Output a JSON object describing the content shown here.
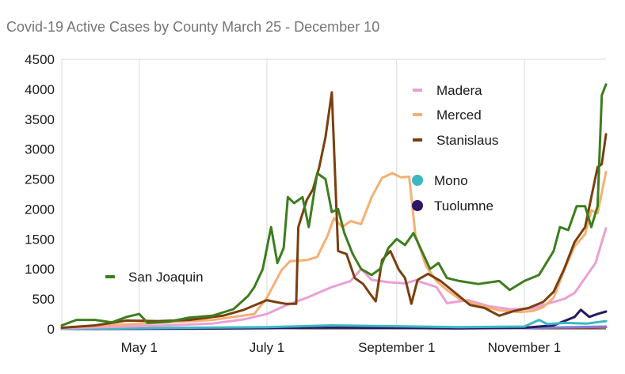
{
  "chart_data": {
    "type": "line",
    "title": "Covid-19 Active Cases by County March 25 - December 10",
    "xlabel": "",
    "ylabel": "",
    "ylim": [
      0,
      4500
    ],
    "yticks": [
      0,
      500,
      1000,
      1500,
      2000,
      2500,
      3000,
      3500,
      4000,
      4500
    ],
    "xlim": [
      "2020-03-25",
      "2020-12-10"
    ],
    "xticks": [
      {
        "date": "2020-05-01",
        "label": "May 1"
      },
      {
        "date": "2020-07-01",
        "label": "July 1"
      },
      {
        "date": "2020-09-01",
        "label": "September 1"
      },
      {
        "date": "2020-11-01",
        "label": "November 1"
      }
    ],
    "grid": "vertical",
    "legend_placement": "inside",
    "series": [
      {
        "name": "Madera",
        "color": "#e9a0d6",
        "legend_group": "top",
        "points": [
          [
            "2020-03-25",
            10
          ],
          [
            "2020-04-15",
            30
          ],
          [
            "2020-05-15",
            60
          ],
          [
            "2020-06-05",
            90
          ],
          [
            "2020-06-20",
            160
          ],
          [
            "2020-07-01",
            250
          ],
          [
            "2020-07-10",
            390
          ],
          [
            "2020-07-20",
            520
          ],
          [
            "2020-08-01",
            700
          ],
          [
            "2020-08-10",
            800
          ],
          [
            "2020-08-15",
            1000
          ],
          [
            "2020-08-20",
            820
          ],
          [
            "2020-08-28",
            780
          ],
          [
            "2020-09-05",
            760
          ],
          [
            "2020-09-10",
            810
          ],
          [
            "2020-09-20",
            700
          ],
          [
            "2020-09-25",
            430
          ],
          [
            "2020-10-05",
            480
          ],
          [
            "2020-10-15",
            380
          ],
          [
            "2020-10-25",
            330
          ],
          [
            "2020-11-05",
            340
          ],
          [
            "2020-11-10",
            400
          ],
          [
            "2020-11-20",
            500
          ],
          [
            "2020-11-25",
            600
          ],
          [
            "2020-12-01",
            900
          ],
          [
            "2020-12-05",
            1100
          ],
          [
            "2020-12-08",
            1450
          ],
          [
            "2020-12-10",
            1680
          ]
        ]
      },
      {
        "name": "Merced",
        "color": "#f5b073",
        "legend_group": "top",
        "points": [
          [
            "2020-03-25",
            20
          ],
          [
            "2020-04-15",
            60
          ],
          [
            "2020-05-10",
            100
          ],
          [
            "2020-06-05",
            150
          ],
          [
            "2020-06-25",
            250
          ],
          [
            "2020-07-01",
            520
          ],
          [
            "2020-07-08",
            980
          ],
          [
            "2020-07-12",
            1130
          ],
          [
            "2020-07-20",
            1150
          ],
          [
            "2020-07-25",
            1200
          ],
          [
            "2020-07-30",
            1560
          ],
          [
            "2020-08-02",
            1850
          ],
          [
            "2020-08-06",
            1700
          ],
          [
            "2020-08-10",
            1800
          ],
          [
            "2020-08-15",
            1750
          ],
          [
            "2020-08-20",
            2200
          ],
          [
            "2020-08-25",
            2520
          ],
          [
            "2020-08-30",
            2600
          ],
          [
            "2020-09-03",
            2530
          ],
          [
            "2020-09-07",
            2540
          ],
          [
            "2020-09-10",
            1560
          ],
          [
            "2020-09-15",
            1050
          ],
          [
            "2020-09-20",
            800
          ],
          [
            "2020-09-25",
            650
          ],
          [
            "2020-10-01",
            500
          ],
          [
            "2020-10-10",
            400
          ],
          [
            "2020-10-20",
            310
          ],
          [
            "2020-10-30",
            280
          ],
          [
            "2020-11-05",
            300
          ],
          [
            "2020-11-10",
            360
          ],
          [
            "2020-11-15",
            520
          ],
          [
            "2020-11-20",
            980
          ],
          [
            "2020-11-25",
            1380
          ],
          [
            "2020-11-30",
            1580
          ],
          [
            "2020-12-03",
            1980
          ],
          [
            "2020-12-06",
            1930
          ],
          [
            "2020-12-10",
            2620
          ]
        ]
      },
      {
        "name": "Stanislaus",
        "color": "#7a3f0f",
        "legend_group": "top",
        "points": [
          [
            "2020-03-25",
            20
          ],
          [
            "2020-04-10",
            60
          ],
          [
            "2020-04-25",
            140
          ],
          [
            "2020-05-10",
            130
          ],
          [
            "2020-05-25",
            150
          ],
          [
            "2020-06-10",
            220
          ],
          [
            "2020-06-20",
            320
          ],
          [
            "2020-07-01",
            480
          ],
          [
            "2020-07-05",
            450
          ],
          [
            "2020-07-10",
            420
          ],
          [
            "2020-07-15",
            420
          ],
          [
            "2020-07-16",
            1700
          ],
          [
            "2020-07-20",
            2150
          ],
          [
            "2020-07-23",
            2330
          ],
          [
            "2020-07-26",
            2700
          ],
          [
            "2020-07-29",
            3200
          ],
          [
            "2020-08-01",
            3950
          ],
          [
            "2020-08-04",
            1300
          ],
          [
            "2020-08-08",
            1250
          ],
          [
            "2020-08-12",
            850
          ],
          [
            "2020-08-16",
            750
          ],
          [
            "2020-08-19",
            600
          ],
          [
            "2020-08-22",
            460
          ],
          [
            "2020-08-25",
            1150
          ],
          [
            "2020-08-29",
            1300
          ],
          [
            "2020-09-02",
            990
          ],
          [
            "2020-09-05",
            850
          ],
          [
            "2020-09-08",
            420
          ],
          [
            "2020-09-11",
            820
          ],
          [
            "2020-09-16",
            920
          ],
          [
            "2020-09-22",
            800
          ],
          [
            "2020-09-29",
            600
          ],
          [
            "2020-10-06",
            400
          ],
          [
            "2020-10-13",
            350
          ],
          [
            "2020-10-20",
            220
          ],
          [
            "2020-10-27",
            300
          ],
          [
            "2020-11-03",
            350
          ],
          [
            "2020-11-10",
            450
          ],
          [
            "2020-11-15",
            620
          ],
          [
            "2020-11-20",
            1000
          ],
          [
            "2020-11-25",
            1450
          ],
          [
            "2020-11-30",
            1700
          ],
          [
            "2020-12-03",
            2200
          ],
          [
            "2020-12-06",
            2700
          ],
          [
            "2020-12-08",
            2750
          ],
          [
            "2020-12-10",
            3250
          ]
        ]
      },
      {
        "name": "Mono",
        "color": "#3cb7c3",
        "legend_group": "middle",
        "points": [
          [
            "2020-03-25",
            0
          ],
          [
            "2020-07-01",
            30
          ],
          [
            "2020-08-01",
            60
          ],
          [
            "2020-09-01",
            45
          ],
          [
            "2020-10-01",
            30
          ],
          [
            "2020-11-01",
            40
          ],
          [
            "2020-11-08",
            150
          ],
          [
            "2020-11-12",
            80
          ],
          [
            "2020-11-20",
            100
          ],
          [
            "2020-12-01",
            90
          ],
          [
            "2020-12-10",
            130
          ]
        ]
      },
      {
        "name": "Tuolumne",
        "color": "#2b1763",
        "legend_group": "middle",
        "points": [
          [
            "2020-03-25",
            0
          ],
          [
            "2020-06-01",
            5
          ],
          [
            "2020-07-01",
            15
          ],
          [
            "2020-08-01",
            25
          ],
          [
            "2020-09-01",
            15
          ],
          [
            "2020-10-01",
            10
          ],
          [
            "2020-11-01",
            20
          ],
          [
            "2020-11-15",
            60
          ],
          [
            "2020-11-25",
            200
          ],
          [
            "2020-11-28",
            320
          ],
          [
            "2020-12-02",
            200
          ],
          [
            "2020-12-06",
            250
          ],
          [
            "2020-12-10",
            290
          ]
        ]
      },
      {
        "name": "San Joaquin",
        "color": "#3d7d1f",
        "legend_group": "left",
        "points": [
          [
            "2020-03-25",
            60
          ],
          [
            "2020-04-01",
            150
          ],
          [
            "2020-04-10",
            150
          ],
          [
            "2020-04-18",
            110
          ],
          [
            "2020-04-25",
            200
          ],
          [
            "2020-05-01",
            250
          ],
          [
            "2020-05-05",
            100
          ],
          [
            "2020-05-15",
            120
          ],
          [
            "2020-05-25",
            190
          ],
          [
            "2020-06-05",
            220
          ],
          [
            "2020-06-15",
            330
          ],
          [
            "2020-06-22",
            550
          ],
          [
            "2020-06-25",
            700
          ],
          [
            "2020-06-29",
            1000
          ],
          [
            "2020-07-03",
            1700
          ],
          [
            "2020-07-06",
            1100
          ],
          [
            "2020-07-09",
            1350
          ],
          [
            "2020-07-11",
            2200
          ],
          [
            "2020-07-14",
            2100
          ],
          [
            "2020-07-18",
            2200
          ],
          [
            "2020-07-21",
            1700
          ],
          [
            "2020-07-25",
            2600
          ],
          [
            "2020-07-29",
            2500
          ],
          [
            "2020-08-01",
            1950
          ],
          [
            "2020-08-04",
            2000
          ],
          [
            "2020-08-07",
            1600
          ],
          [
            "2020-08-11",
            1250
          ],
          [
            "2020-08-15",
            1000
          ],
          [
            "2020-08-20",
            900
          ],
          [
            "2020-08-24",
            1000
          ],
          [
            "2020-08-28",
            1350
          ],
          [
            "2020-09-01",
            1500
          ],
          [
            "2020-09-05",
            1400
          ],
          [
            "2020-09-09",
            1600
          ],
          [
            "2020-09-13",
            1300
          ],
          [
            "2020-09-17",
            1000
          ],
          [
            "2020-09-21",
            1100
          ],
          [
            "2020-09-25",
            850
          ],
          [
            "2020-10-01",
            800
          ],
          [
            "2020-10-10",
            750
          ],
          [
            "2020-10-20",
            800
          ],
          [
            "2020-10-25",
            650
          ],
          [
            "2020-11-01",
            800
          ],
          [
            "2020-11-08",
            900
          ],
          [
            "2020-11-15",
            1300
          ],
          [
            "2020-11-18",
            1700
          ],
          [
            "2020-11-22",
            1650
          ],
          [
            "2020-11-26",
            2050
          ],
          [
            "2020-11-30",
            2050
          ],
          [
            "2020-12-03",
            1700
          ],
          [
            "2020-12-06",
            2050
          ],
          [
            "2020-12-08",
            3900
          ],
          [
            "2020-12-10",
            4080
          ]
        ]
      },
      {
        "name": "",
        "color": "#e8403a",
        "legend_group": "none",
        "points": [
          [
            "2020-03-25",
            0
          ],
          [
            "2020-06-01",
            10
          ],
          [
            "2020-07-01",
            20
          ],
          [
            "2020-08-01",
            35
          ],
          [
            "2020-09-01",
            25
          ],
          [
            "2020-10-01",
            15
          ],
          [
            "2020-11-01",
            20
          ],
          [
            "2020-12-01",
            25
          ],
          [
            "2020-12-10",
            30
          ]
        ]
      },
      {
        "name": "",
        "color": "#7f7fd6",
        "legend_group": "none",
        "points": [
          [
            "2020-03-25",
            0
          ],
          [
            "2020-07-01",
            10
          ],
          [
            "2020-08-01",
            25
          ],
          [
            "2020-09-01",
            15
          ],
          [
            "2020-10-01",
            10
          ],
          [
            "2020-11-01",
            15
          ],
          [
            "2020-12-10",
            40
          ]
        ]
      }
    ]
  }
}
